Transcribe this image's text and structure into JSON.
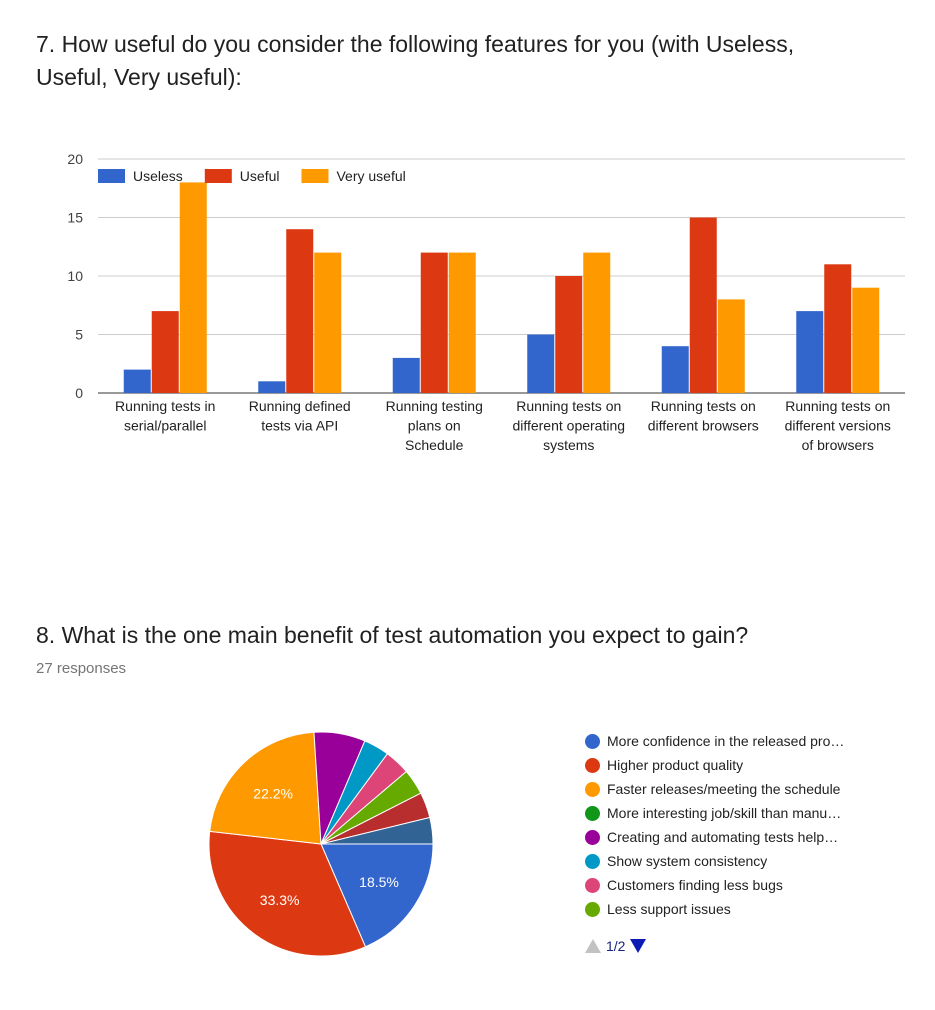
{
  "q7": {
    "title": "7. How useful do you consider the following features for you (with Useless, Useful, Very useful):"
  },
  "q8": {
    "title": "8. What is the one main benefit of test automation you expect to gain?",
    "responses": "27 responses",
    "pager": "1/2"
  },
  "chart_data": [
    {
      "type": "bar",
      "categories": [
        [
          "Running tests in",
          "serial/parallel"
        ],
        [
          "Running defined",
          "tests via API"
        ],
        [
          "Running testing",
          "plans on",
          "Schedule"
        ],
        [
          "Running tests on",
          "different operating",
          "systems"
        ],
        [
          "Running tests on",
          "different browsers"
        ],
        [
          "Running tests on",
          "different versions",
          "of browsers"
        ]
      ],
      "series": [
        {
          "name": "Useless",
          "color": "#3366cc",
          "values": [
            2,
            1,
            3,
            5,
            4,
            7
          ]
        },
        {
          "name": "Useful",
          "color": "#dc3912",
          "values": [
            7,
            14,
            12,
            10,
            15,
            11
          ]
        },
        {
          "name": "Very useful",
          "color": "#ff9900",
          "values": [
            18,
            12,
            12,
            12,
            8,
            9
          ]
        }
      ],
      "yticks": [
        0,
        5,
        10,
        15,
        20
      ],
      "ylim": [
        0,
        20
      ],
      "grid": true,
      "legend": "top-left"
    },
    {
      "type": "pie",
      "slices": [
        {
          "label": "More confidence in the released pro…",
          "value": 18.5,
          "pct_label": "18.5%",
          "color": "#3366cc"
        },
        {
          "label": "Higher product quality",
          "value": 33.3,
          "pct_label": "33.3%",
          "color": "#dc3912"
        },
        {
          "label": "Faster releases/meeting the schedule",
          "value": 22.2,
          "pct_label": "22.2%",
          "color": "#ff9900"
        },
        {
          "label": "More interesting job/skill than manu…",
          "value": 0,
          "pct_label": "",
          "color": "#109618"
        },
        {
          "label": "Creating and automating tests help…",
          "value": 7.4,
          "pct_label": "",
          "color": "#990099"
        },
        {
          "label": "Show system consistency",
          "value": 3.7,
          "pct_label": "",
          "color": "#0099c6"
        },
        {
          "label": "Customers finding less bugs",
          "value": 3.7,
          "pct_label": "",
          "color": "#dd4477"
        },
        {
          "label": "Less support issues",
          "value": 3.7,
          "pct_label": "",
          "color": "#66aa00"
        },
        {
          "label": "",
          "value": 3.7,
          "pct_label": "",
          "color": "#b82e2e"
        },
        {
          "label": "",
          "value": 3.8,
          "pct_label": "",
          "color": "#316395"
        }
      ],
      "legend": "right"
    }
  ]
}
